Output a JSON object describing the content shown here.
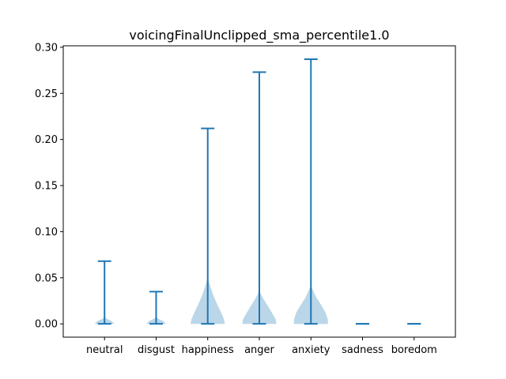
{
  "chart_data": {
    "type": "violin",
    "title": "voicingFinalUnclipped_sma_percentile1.0",
    "xlabel": "",
    "ylabel": "",
    "categories": [
      "neutral",
      "disgust",
      "happiness",
      "anger",
      "anxiety",
      "sadness",
      "boredom"
    ],
    "ylim": [
      -0.0144,
      0.3016
    ],
    "yticks": [
      0.0,
      0.05,
      0.1,
      0.15,
      0.2,
      0.25,
      0.3
    ],
    "ytick_labels": [
      "0.00",
      "0.05",
      "0.10",
      "0.15",
      "0.20",
      "0.25",
      "0.30"
    ],
    "grid": false,
    "series": [
      {
        "category": "neutral",
        "min": 0.0,
        "max": 0.068,
        "shape": [
          [
            0.0,
            0.55
          ],
          [
            0.003,
            0.4
          ],
          [
            0.006,
            0.08
          ],
          [
            0.009,
            0.0
          ]
        ]
      },
      {
        "category": "disgust",
        "min": 0.0,
        "max": 0.035,
        "shape": [
          [
            0.0,
            0.55
          ],
          [
            0.003,
            0.4
          ],
          [
            0.006,
            0.08
          ],
          [
            0.009,
            0.0
          ]
        ]
      },
      {
        "category": "happiness",
        "min": 0.0,
        "max": 0.212,
        "shape": [
          [
            0.0,
            0.95
          ],
          [
            0.005,
            0.9
          ],
          [
            0.012,
            0.75
          ],
          [
            0.02,
            0.55
          ],
          [
            0.03,
            0.33
          ],
          [
            0.04,
            0.15
          ],
          [
            0.05,
            0.0
          ]
        ]
      },
      {
        "category": "anger",
        "min": 0.0,
        "max": 0.273,
        "shape": [
          [
            0.0,
            0.95
          ],
          [
            0.005,
            0.9
          ],
          [
            0.012,
            0.7
          ],
          [
            0.02,
            0.45
          ],
          [
            0.028,
            0.2
          ],
          [
            0.034,
            0.05
          ],
          [
            0.037,
            0.0
          ]
        ]
      },
      {
        "category": "anxiety",
        "min": 0.0,
        "max": 0.287,
        "shape": [
          [
            0.0,
            0.95
          ],
          [
            0.005,
            0.93
          ],
          [
            0.012,
            0.82
          ],
          [
            0.02,
            0.58
          ],
          [
            0.028,
            0.32
          ],
          [
            0.036,
            0.12
          ],
          [
            0.042,
            0.0
          ]
        ]
      },
      {
        "category": "sadness",
        "min": 0.0,
        "max": 0.0,
        "shape": []
      },
      {
        "category": "boredom",
        "min": 0.0,
        "max": 0.0,
        "shape": []
      }
    ],
    "colors": {
      "line": "#1f77b4",
      "body": "#1f77b4",
      "body_opacity": 0.3
    }
  }
}
